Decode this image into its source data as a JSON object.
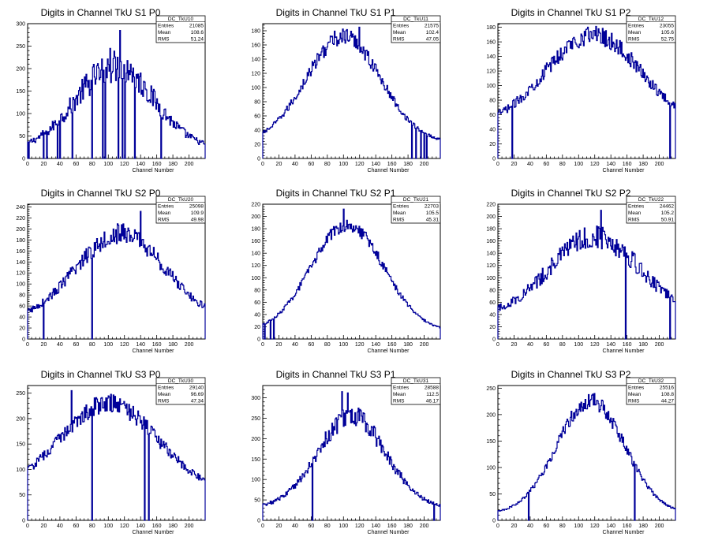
{
  "chart_data": [
    {
      "type": "histogram",
      "title": "Digits in Channel TkU S1 P0",
      "xlabel": "Channel Number",
      "xlim": [
        0,
        220
      ],
      "ylim": [
        0,
        300
      ],
      "xticks": [
        0,
        20,
        40,
        60,
        80,
        100,
        120,
        140,
        160,
        180,
        200
      ],
      "yticks": [
        0,
        50,
        100,
        150,
        200,
        250,
        300
      ],
      "stats": {
        "name": "DC_TkU10",
        "rows": [
          {
            "label": "Entries",
            "value": "21085"
          },
          {
            "label": "Mean",
            "value": "108.6"
          },
          {
            "label": "RMS",
            "value": "51.24"
          }
        ]
      },
      "nbins": 216,
      "shape": {
        "peak_x": 108,
        "width": 48,
        "amp": 185,
        "base": 20,
        "noise": 0.18
      },
      "spikes": [
        {
          "x": 115,
          "y": 285
        },
        {
          "x": 102,
          "y": 245
        },
        {
          "x": 106,
          "y": 222
        },
        {
          "x": 124,
          "y": 218
        },
        {
          "x": 128,
          "y": 210
        },
        {
          "x": 90,
          "y": 180
        },
        {
          "x": 75,
          "y": 158
        },
        {
          "x": 145,
          "y": 170
        }
      ],
      "dips": [
        {
          "x": 2,
          "y": 0
        },
        {
          "x": 20,
          "y": 0
        },
        {
          "x": 24,
          "y": 0
        },
        {
          "x": 37,
          "y": 0
        },
        {
          "x": 40,
          "y": 0
        },
        {
          "x": 56,
          "y": 0
        },
        {
          "x": 80,
          "y": 0
        },
        {
          "x": 93,
          "y": 0
        },
        {
          "x": 96,
          "y": 0
        },
        {
          "x": 113,
          "y": 0
        },
        {
          "x": 118,
          "y": 0
        },
        {
          "x": 121,
          "y": 0
        },
        {
          "x": 133,
          "y": 0
        },
        {
          "x": 165,
          "y": 0
        }
      ]
    },
    {
      "type": "histogram",
      "title": "Digits in Channel TkU S1 P1",
      "xlabel": "Channel Number",
      "xlim": [
        0,
        220
      ],
      "ylim": [
        0,
        190
      ],
      "xticks": [
        0,
        20,
        40,
        60,
        80,
        100,
        120,
        140,
        160,
        180,
        200
      ],
      "yticks": [
        0,
        20,
        40,
        60,
        80,
        100,
        120,
        140,
        160,
        180
      ],
      "stats": {
        "name": "DC_TkU11",
        "rows": [
          {
            "label": "Entries",
            "value": "21575"
          },
          {
            "label": "Mean",
            "value": "102.4"
          },
          {
            "label": "RMS",
            "value": "47.05"
          }
        ]
      },
      "nbins": 216,
      "shape": {
        "peak_x": 100,
        "width": 46,
        "amp": 150,
        "base": 22,
        "noise": 0.07
      },
      "spikes": [
        {
          "x": 120,
          "y": 185
        }
      ],
      "dips": [
        {
          "x": 185,
          "y": 0
        },
        {
          "x": 190,
          "y": 0
        },
        {
          "x": 196,
          "y": 0
        },
        {
          "x": 200,
          "y": 0
        },
        {
          "x": 203,
          "y": 0
        }
      ]
    },
    {
      "type": "histogram",
      "title": "Digits in Channel TkU S1 P2",
      "xlabel": "Channel Number",
      "xlim": [
        0,
        220
      ],
      "ylim": [
        0,
        185
      ],
      "xticks": [
        0,
        20,
        40,
        60,
        80,
        100,
        120,
        140,
        160,
        180,
        200
      ],
      "yticks": [
        0,
        20,
        40,
        60,
        80,
        100,
        120,
        140,
        160,
        180
      ],
      "stats": {
        "name": "DC_TkU12",
        "rows": [
          {
            "label": "Entries",
            "value": "23055"
          },
          {
            "label": "Mean",
            "value": "105.6"
          },
          {
            "label": "RMS",
            "value": "52.75"
          }
        ]
      },
      "nbins": 216,
      "shape": {
        "peak_x": 118,
        "width": 58,
        "amp": 125,
        "base": 45,
        "noise": 0.08
      },
      "spikes": [
        {
          "x": 125,
          "y": 178
        }
      ],
      "dips": [
        {
          "x": 18,
          "y": 0
        },
        {
          "x": 213,
          "y": 0
        }
      ]
    },
    {
      "type": "histogram",
      "title": "Digits in Channel TkU S2 P0",
      "xlabel": "Channel Number",
      "xlim": [
        0,
        220
      ],
      "ylim": [
        0,
        245
      ],
      "xticks": [
        0,
        20,
        40,
        60,
        80,
        100,
        120,
        140,
        160,
        180,
        200
      ],
      "yticks": [
        0,
        20,
        40,
        60,
        80,
        100,
        120,
        140,
        160,
        180,
        200,
        220,
        240
      ],
      "stats": {
        "name": "DC_TkU20",
        "rows": [
          {
            "label": "Entries",
            "value": "25098"
          },
          {
            "label": "Mean",
            "value": "109.9"
          },
          {
            "label": "RMS",
            "value": "49.98"
          }
        ]
      },
      "nbins": 216,
      "shape": {
        "peak_x": 115,
        "width": 55,
        "amp": 160,
        "base": 32,
        "noise": 0.1
      },
      "spikes": [
        {
          "x": 140,
          "y": 232
        }
      ],
      "dips": [
        {
          "x": 20,
          "y": 0
        },
        {
          "x": 80,
          "y": 0
        }
      ]
    },
    {
      "type": "histogram",
      "title": "Digits in Channel TkU S2 P1",
      "xlabel": "Channel Number",
      "xlim": [
        0,
        220
      ],
      "ylim": [
        0,
        220
      ],
      "xticks": [
        0,
        20,
        40,
        60,
        80,
        100,
        120,
        140,
        160,
        180,
        200
      ],
      "yticks": [
        0,
        20,
        40,
        60,
        80,
        100,
        120,
        140,
        160,
        180,
        200,
        220
      ],
      "stats": {
        "name": "DC_TkU21",
        "rows": [
          {
            "label": "Entries",
            "value": "22703"
          },
          {
            "label": "Mean",
            "value": "105.5"
          },
          {
            "label": "RMS",
            "value": "45.31"
          }
        ]
      },
      "nbins": 216,
      "shape": {
        "peak_x": 105,
        "width": 45,
        "amp": 175,
        "base": 12,
        "noise": 0.06
      },
      "spikes": [
        {
          "x": 100,
          "y": 212
        }
      ],
      "dips": [
        {
          "x": 3,
          "y": 0
        },
        {
          "x": 10,
          "y": 0
        },
        {
          "x": 14,
          "y": 0
        }
      ]
    },
    {
      "type": "histogram",
      "title": "Digits in Channel TkU S2 P2",
      "xlabel": "Channel Number",
      "xlim": [
        0,
        220
      ],
      "ylim": [
        0,
        220
      ],
      "xticks": [
        0,
        20,
        40,
        60,
        80,
        100,
        120,
        140,
        160,
        180,
        200
      ],
      "yticks": [
        0,
        20,
        40,
        60,
        80,
        100,
        120,
        140,
        160,
        180,
        200,
        220
      ],
      "stats": {
        "name": "DC_TkU22",
        "rows": [
          {
            "label": "Entries",
            "value": "24462"
          },
          {
            "label": "Mean",
            "value": "105.2"
          },
          {
            "label": "RMS",
            "value": "50.91"
          }
        ]
      },
      "nbins": 216,
      "shape": {
        "peak_x": 120,
        "width": 55,
        "amp": 130,
        "base": 38,
        "noise": 0.12
      },
      "spikes": [
        {
          "x": 128,
          "y": 210
        }
      ],
      "dips": [
        {
          "x": 158,
          "y": 0
        },
        {
          "x": 213,
          "y": 0
        }
      ]
    },
    {
      "type": "histogram",
      "title": "Digits in Channel TkU S3 P0",
      "xlabel": "Channel Number",
      "xlim": [
        0,
        220
      ],
      "ylim": [
        0,
        265
      ],
      "xticks": [
        0,
        20,
        40,
        60,
        80,
        100,
        120,
        140,
        160,
        180,
        200
      ],
      "yticks": [
        0,
        50,
        100,
        150,
        200,
        250
      ],
      "stats": {
        "name": "DC_TkU30",
        "rows": [
          {
            "label": "Entries",
            "value": "29140"
          },
          {
            "label": "Mean",
            "value": "96.69"
          },
          {
            "label": "RMS",
            "value": "47.34"
          }
        ]
      },
      "nbins": 216,
      "shape": {
        "peak_x": 100,
        "width": 60,
        "amp": 175,
        "base": 55,
        "noise": 0.08
      },
      "spikes": [
        {
          "x": 55,
          "y": 255
        }
      ],
      "dips": [
        {
          "x": 80,
          "y": 0
        },
        {
          "x": 145,
          "y": 0
        },
        {
          "x": 150,
          "y": 0
        }
      ]
    },
    {
      "type": "histogram",
      "title": "Digits in Channel TkU S3 P1",
      "xlabel": "Channel Number",
      "xlim": [
        0,
        220
      ],
      "ylim": [
        0,
        330
      ],
      "xticks": [
        0,
        20,
        40,
        60,
        80,
        100,
        120,
        140,
        160,
        180,
        200
      ],
      "yticks": [
        0,
        50,
        100,
        150,
        200,
        250,
        300
      ],
      "stats": {
        "name": "DC_TkU31",
        "rows": [
          {
            "label": "Entries",
            "value": "28588"
          },
          {
            "label": "Mean",
            "value": "112.5"
          },
          {
            "label": "RMS",
            "value": "46.17"
          }
        ]
      },
      "nbins": 216,
      "shape": {
        "peak_x": 110,
        "width": 42,
        "amp": 225,
        "base": 30,
        "noise": 0.1
      },
      "spikes": [
        {
          "x": 98,
          "y": 315
        },
        {
          "x": 105,
          "y": 312
        }
      ],
      "dips": [
        {
          "x": 62,
          "y": 0
        },
        {
          "x": 212,
          "y": 0
        }
      ]
    },
    {
      "type": "histogram",
      "title": "Digits in Channel TkU S3 P2",
      "xlabel": "Channel Number",
      "xlim": [
        0,
        220
      ],
      "ylim": [
        0,
        255
      ],
      "xticks": [
        0,
        20,
        40,
        60,
        80,
        100,
        120,
        140,
        160,
        180,
        200
      ],
      "yticks": [
        0,
        50,
        100,
        150,
        200,
        250
      ],
      "stats": {
        "name": "DC_TkU32",
        "rows": [
          {
            "label": "Entries",
            "value": "25516"
          },
          {
            "label": "Mean",
            "value": "108.8"
          },
          {
            "label": "RMS",
            "value": "44.27"
          }
        ]
      },
      "nbins": 216,
      "shape": {
        "peak_x": 115,
        "width": 42,
        "amp": 215,
        "base": 12,
        "noise": 0.07
      },
      "spikes": [
        {
          "x": 120,
          "y": 240
        }
      ],
      "dips": [
        {
          "x": 38,
          "y": 0
        },
        {
          "x": 170,
          "y": 0
        }
      ]
    }
  ],
  "style": {
    "line_color": "#000099",
    "axis_color": "#000000",
    "background": "#ffffff"
  }
}
